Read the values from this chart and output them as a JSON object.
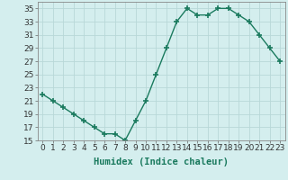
{
  "x": [
    0,
    1,
    2,
    3,
    4,
    5,
    6,
    7,
    8,
    9,
    10,
    11,
    12,
    13,
    14,
    15,
    16,
    17,
    18,
    19,
    20,
    21,
    22,
    23
  ],
  "y": [
    22,
    21,
    20,
    19,
    18,
    17,
    16,
    16,
    15,
    18,
    21,
    25,
    29,
    33,
    35,
    34,
    34,
    35,
    35,
    34,
    33,
    31,
    29,
    27
  ],
  "ylim": [
    15,
    36
  ],
  "xlim": [
    -0.5,
    23.5
  ],
  "yticks": [
    15,
    17,
    19,
    21,
    23,
    25,
    27,
    29,
    31,
    33,
    35
  ],
  "xticks": [
    0,
    1,
    2,
    3,
    4,
    5,
    6,
    7,
    8,
    9,
    10,
    11,
    12,
    13,
    14,
    15,
    16,
    17,
    18,
    19,
    20,
    21,
    22,
    23
  ],
  "xlabel": "Humidex (Indice chaleur)",
  "line_color": "#1a7a5e",
  "marker": "+",
  "marker_size": 4,
  "line_width": 1.0,
  "bg_color": "#d4eeee",
  "grid_color": "#b8d8d8",
  "tick_label_fontsize": 6.5,
  "xlabel_fontsize": 7.5
}
